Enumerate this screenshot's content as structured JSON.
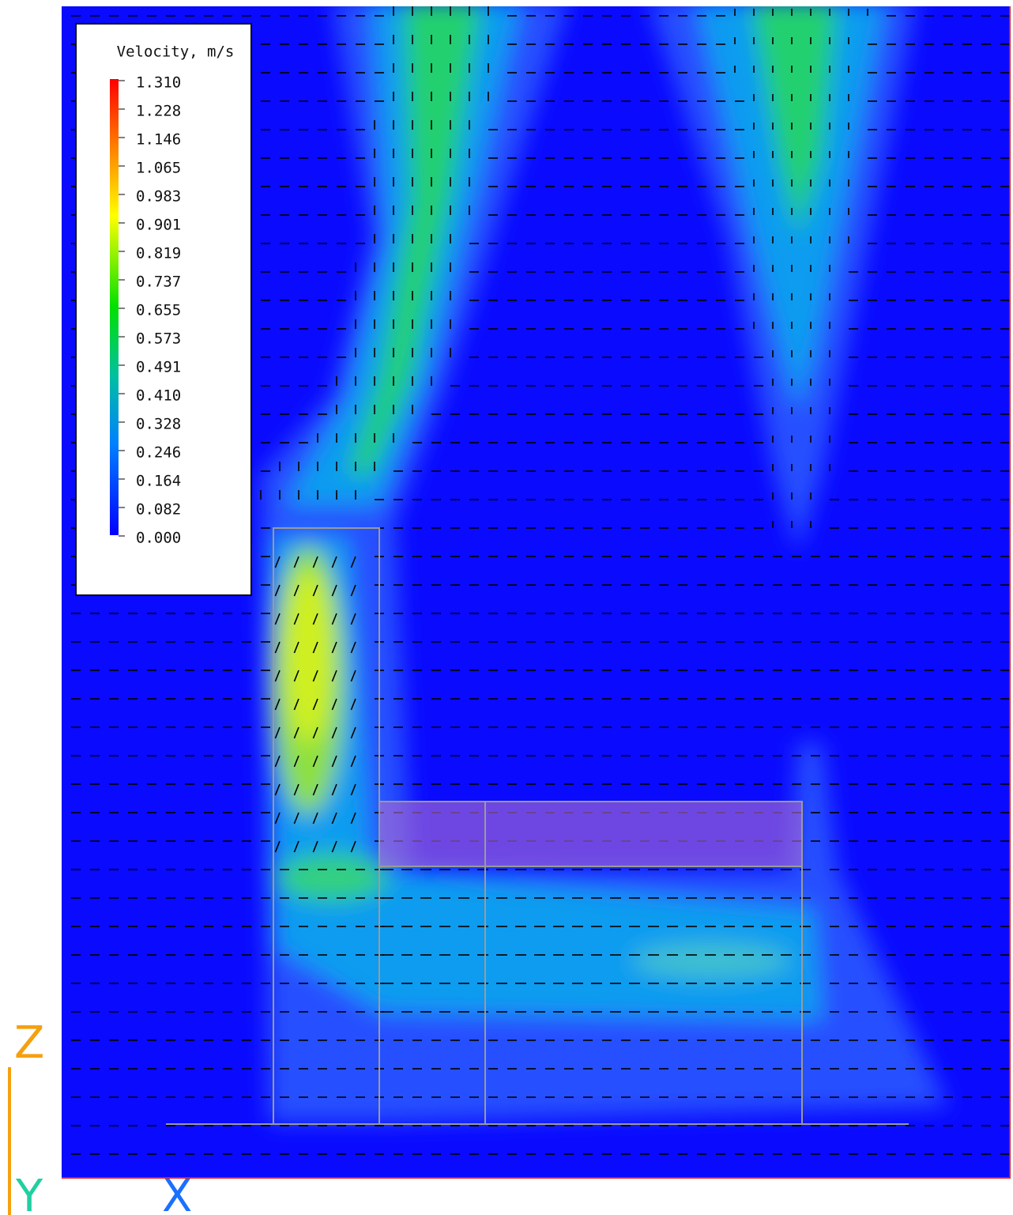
{
  "legend": {
    "title": "Velocity, m/s",
    "labels": [
      "1.310",
      "1.228",
      "1.146",
      "1.065",
      "0.983",
      "0.901",
      "0.819",
      "0.737",
      "0.655",
      "0.573",
      "0.491",
      "0.410",
      "0.328",
      "0.246",
      "0.164",
      "0.082",
      "0.000"
    ]
  },
  "axes": {
    "z": "Z",
    "y": "Y",
    "x": "X"
  }
}
